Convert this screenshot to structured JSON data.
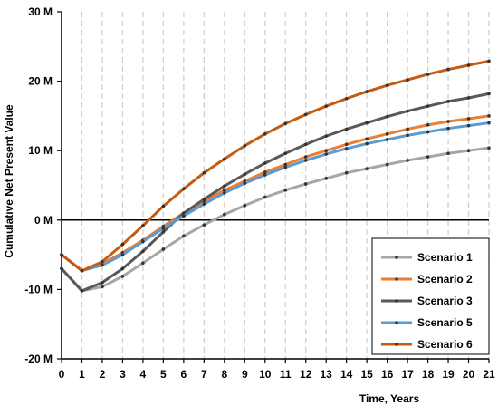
{
  "chart_data": {
    "type": "line",
    "xlabel": "Time, Years",
    "ylabel": "Cumulative Net Present Value",
    "xlim": [
      0,
      21
    ],
    "ylim": [
      -20,
      30
    ],
    "x": [
      0,
      1,
      2,
      3,
      4,
      5,
      6,
      7,
      8,
      9,
      10,
      11,
      12,
      13,
      14,
      15,
      16,
      17,
      18,
      19,
      20,
      21
    ],
    "x_tick_labels": [
      "0",
      "1",
      "2",
      "3",
      "4",
      "5",
      "6",
      "7",
      "8",
      "9",
      "10",
      "11",
      "12",
      "13",
      "14",
      "15",
      "16",
      "17",
      "18",
      "19",
      "20",
      "21"
    ],
    "y_ticks": [
      {
        "value": 30,
        "label": "30 M"
      },
      {
        "value": 20,
        "label": "20 M"
      },
      {
        "value": 10,
        "label": "10 M"
      },
      {
        "value": 0,
        "label": "0 M"
      },
      {
        "value": -10,
        "label": "-10 M"
      },
      {
        "value": -20,
        "label": "-20 M"
      }
    ],
    "vertical_gridlines": "dashed",
    "zero_line": true,
    "legend_position": "bottom-right",
    "series": [
      {
        "name": "Scenario 1",
        "color": "#a6a6a6",
        "values": [
          -7.0,
          -10.2,
          -9.6,
          -8.1,
          -6.2,
          -4.2,
          -2.3,
          -0.7,
          0.8,
          2.1,
          3.3,
          4.3,
          5.2,
          6.0,
          6.8,
          7.4,
          8.0,
          8.6,
          9.1,
          9.6,
          10.0,
          10.4
        ]
      },
      {
        "name": "Scenario 2",
        "color": "#ed7d31",
        "values": [
          -5.0,
          -7.3,
          -6.3,
          -4.7,
          -2.9,
          -0.9,
          1.0,
          2.7,
          4.3,
          5.6,
          6.9,
          8.0,
          9.1,
          10.0,
          10.9,
          11.7,
          12.4,
          13.1,
          13.7,
          14.2,
          14.6,
          15.0
        ]
      },
      {
        "name": "Scenario 3",
        "color": "#595959",
        "values": [
          -7.0,
          -10.2,
          -9.0,
          -7.0,
          -4.5,
          -1.7,
          1.0,
          3.0,
          4.9,
          6.6,
          8.2,
          9.6,
          10.9,
          12.1,
          13.1,
          14.0,
          14.9,
          15.7,
          16.4,
          17.1,
          17.6,
          18.2
        ]
      },
      {
        "name": "Scenario 5",
        "color": "#5b9bd5",
        "values": [
          -5.0,
          -7.3,
          -6.5,
          -5.0,
          -3.1,
          -1.2,
          0.6,
          2.3,
          3.9,
          5.3,
          6.5,
          7.6,
          8.6,
          9.5,
          10.3,
          11.0,
          11.6,
          12.2,
          12.7,
          13.2,
          13.6,
          14.0
        ]
      },
      {
        "name": "Scenario 6",
        "color": "#c55a11",
        "values": [
          -5.0,
          -7.3,
          -6.0,
          -3.5,
          -0.8,
          2.0,
          4.5,
          6.8,
          8.8,
          10.7,
          12.4,
          13.9,
          15.2,
          16.4,
          17.5,
          18.5,
          19.4,
          20.2,
          21.0,
          21.7,
          22.3,
          22.9
        ]
      }
    ]
  }
}
